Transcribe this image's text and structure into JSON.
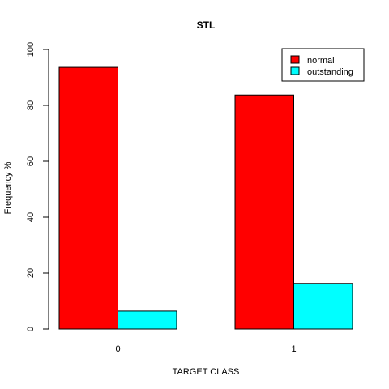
{
  "chart_data": {
    "type": "bar",
    "layout": "grouped",
    "title": "STL",
    "xlabel": "TARGET CLASS",
    "ylabel": "Frequency %",
    "categories": [
      "0",
      "1"
    ],
    "series": [
      {
        "name": "normal",
        "color": "#ff0000",
        "values": [
          93.6,
          83.7
        ]
      },
      {
        "name": "outstanding",
        "color": "#00ffff",
        "values": [
          6.4,
          16.3
        ]
      }
    ],
    "ylim": [
      0,
      100
    ],
    "yticks": [
      0,
      20,
      40,
      60,
      80,
      100
    ],
    "grid": false,
    "legend_position": "top-right"
  }
}
